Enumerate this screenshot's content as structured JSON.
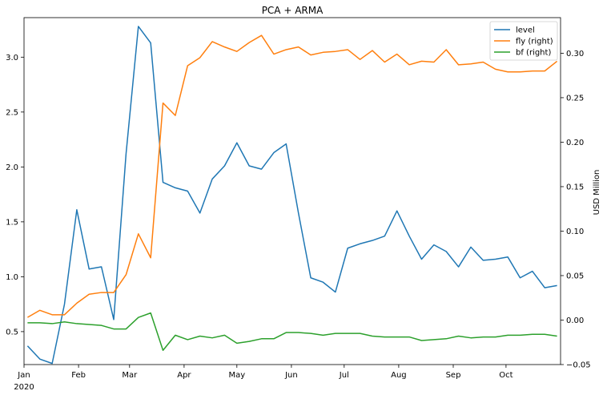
{
  "chart_data": {
    "type": "line",
    "title": "PCA + ARMA",
    "xlabel": "",
    "ylabel_left": "",
    "ylabel_right": "USD Million",
    "x_tick_labels": [
      "Jan",
      "Feb",
      "Mar",
      "Apr",
      "May",
      "Jun",
      "Jul",
      "Aug",
      "Sep",
      "Oct"
    ],
    "x_year_label": "2020",
    "x": [
      "2020-01-03",
      "2020-01-10",
      "2020-01-17",
      "2020-01-24",
      "2020-01-31",
      "2020-02-07",
      "2020-02-14",
      "2020-02-21",
      "2020-02-28",
      "2020-03-06",
      "2020-03-13",
      "2020-03-20",
      "2020-03-27",
      "2020-04-03",
      "2020-04-10",
      "2020-04-17",
      "2020-04-24",
      "2020-05-01",
      "2020-05-08",
      "2020-05-15",
      "2020-05-22",
      "2020-05-29",
      "2020-06-05",
      "2020-06-12",
      "2020-06-19",
      "2020-06-26",
      "2020-07-03",
      "2020-07-10",
      "2020-07-17",
      "2020-07-24",
      "2020-07-31",
      "2020-08-07",
      "2020-08-14",
      "2020-08-21",
      "2020-08-28",
      "2020-09-04",
      "2020-09-11",
      "2020-09-18",
      "2020-09-25",
      "2020-10-02",
      "2020-10-09",
      "2020-10-16",
      "2020-10-23",
      "2020-10-30"
    ],
    "xlim": [
      "2020-01-01",
      "2020-11-01"
    ],
    "ylim_left": [
      0.2,
      3.36
    ],
    "yticks_left": [
      "0.5",
      "1.0",
      "1.5",
      "2.0",
      "2.5",
      "3.0"
    ],
    "ylim_right": [
      -0.05,
      0.34
    ],
    "yticks_right": [
      "−0.05",
      "0.00",
      "0.05",
      "0.10",
      "0.15",
      "0.20",
      "0.25",
      "0.30"
    ],
    "grid": false,
    "legend_position": "top-right",
    "series": [
      {
        "name": "level",
        "axis": "left",
        "color": "#1f77b4",
        "values": [
          0.37,
          0.25,
          0.21,
          0.75,
          1.61,
          1.07,
          1.09,
          0.61,
          2.12,
          3.28,
          3.13,
          1.86,
          1.81,
          1.78,
          1.58,
          1.89,
          2.01,
          2.22,
          2.01,
          1.98,
          2.13,
          2.21,
          1.58,
          0.99,
          0.95,
          0.86,
          1.26,
          1.3,
          1.33,
          1.37,
          1.6,
          1.37,
          1.16,
          1.29,
          1.23,
          1.09,
          1.27,
          1.15,
          1.16,
          1.18,
          0.99,
          1.05,
          0.9,
          0.92
        ]
      },
      {
        "name": "fly (right)",
        "axis": "right",
        "color": "#ff7f0e",
        "values": [
          0.003,
          0.011,
          0.006,
          0.006,
          0.019,
          0.029,
          0.031,
          0.031,
          0.051,
          0.097,
          0.07,
          0.244,
          0.23,
          0.286,
          0.295,
          0.313,
          0.307,
          0.302,
          0.312,
          0.32,
          0.299,
          0.304,
          0.307,
          0.298,
          0.301,
          0.302,
          0.304,
          0.293,
          0.303,
          0.29,
          0.299,
          0.287,
          0.291,
          0.29,
          0.304,
          0.287,
          0.288,
          0.29,
          0.282,
          0.279,
          0.279,
          0.28,
          0.28,
          0.291
        ]
      },
      {
        "name": "bf (right)",
        "axis": "right",
        "color": "#2ca02c",
        "values": [
          -0.003,
          -0.003,
          -0.004,
          -0.002,
          -0.004,
          -0.005,
          -0.006,
          -0.01,
          -0.01,
          0.003,
          0.008,
          -0.034,
          -0.017,
          -0.022,
          -0.018,
          -0.02,
          -0.017,
          -0.026,
          -0.024,
          -0.021,
          -0.021,
          -0.014,
          -0.014,
          -0.015,
          -0.017,
          -0.015,
          -0.015,
          -0.015,
          -0.018,
          -0.019,
          -0.019,
          -0.019,
          -0.023,
          -0.022,
          -0.021,
          -0.018,
          -0.02,
          -0.019,
          -0.019,
          -0.017,
          -0.017,
          -0.016,
          -0.016,
          -0.018
        ]
      }
    ]
  }
}
